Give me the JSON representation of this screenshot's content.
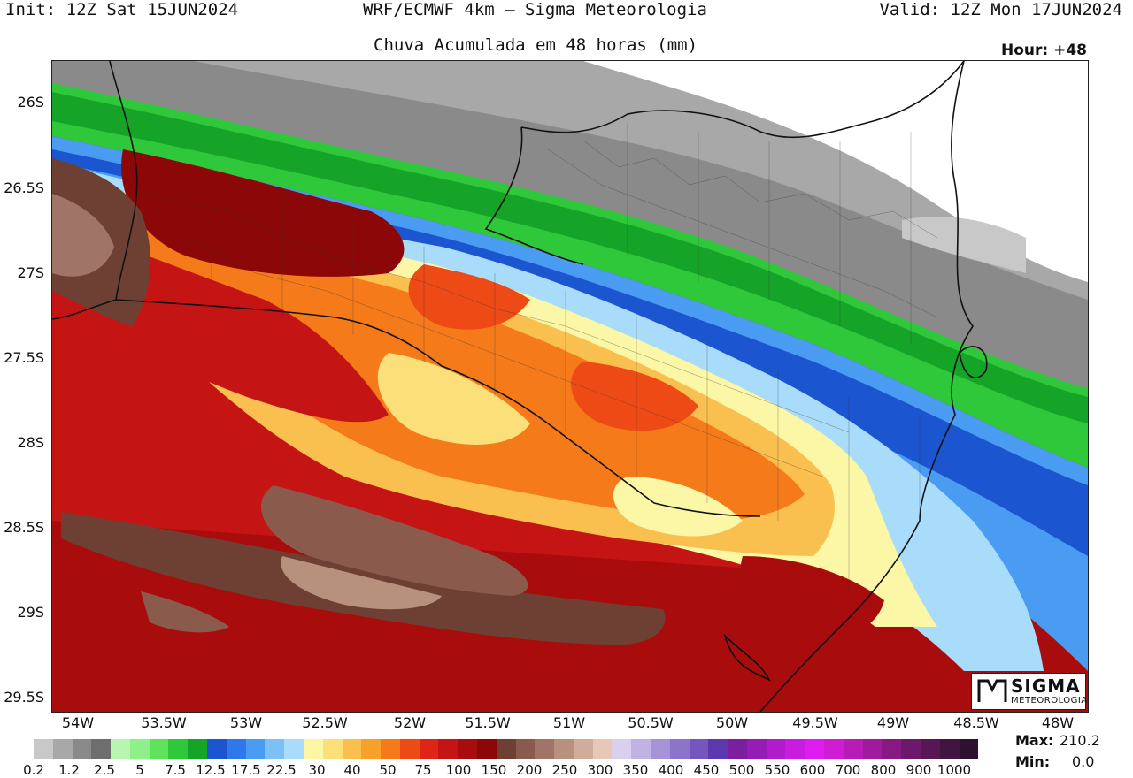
{
  "header": {
    "init": "Init: 12Z Sat 15JUN2024",
    "model": "WRF/ECMWF 4km – Sigma Meteorologia",
    "valid": "Valid: 12Z Mon 17JUN2024",
    "subtitle": "Chuva Acumulada em 48 horas (mm)",
    "hour": "Hour: +48"
  },
  "axes": {
    "y_labels": [
      "26S",
      "26.5S",
      "27S",
      "27.5S",
      "28S",
      "28.5S",
      "29S",
      "29.5S"
    ],
    "x_labels": [
      "54W",
      "53.5W",
      "53W",
      "52.5W",
      "52W",
      "51.5W",
      "51W",
      "50.5W",
      "50W",
      "49.5W",
      "49W",
      "48.5W",
      "48W"
    ]
  },
  "colorbar": {
    "labels": [
      "0.2",
      "1.2",
      "2.5",
      "5",
      "7.5",
      "12.5",
      "17.5",
      "22.5",
      "30",
      "40",
      "50",
      "75",
      "100",
      "150",
      "200",
      "250",
      "300",
      "350",
      "400",
      "450",
      "500",
      "550",
      "600",
      "700",
      "800",
      "900",
      "1000"
    ],
    "colors": [
      "#c8c8c8",
      "#a8a8a8",
      "#8a8a8a",
      "#6e6e6e",
      "#b8f5b0",
      "#8ff08a",
      "#5fe35a",
      "#2fc83a",
      "#16a428",
      "#1c55d0",
      "#2f78ea",
      "#4a9cf2",
      "#7cc0f6",
      "#a8dcfa",
      "#fbf7a6",
      "#fbe07a",
      "#f9c050",
      "#f7a02a",
      "#f47a1a",
      "#ee4a16",
      "#df2418",
      "#c41414",
      "#a80c0c",
      "#8c0808",
      "#6e4034",
      "#8a5a4c",
      "#a07466",
      "#b8907e",
      "#d0ac9a",
      "#e6c8b8",
      "#d8d0ec",
      "#c0b2e2",
      "#a692d6",
      "#8c74ca",
      "#7456bc",
      "#5c38ae",
      "#7c1ea0",
      "#961cb6",
      "#b01ccc",
      "#c81ce0",
      "#de1cf0",
      "#d01cd2",
      "#b81cb6",
      "#a01a9c",
      "#881882",
      "#6e186a",
      "#581654",
      "#421440",
      "#2e1030"
    ]
  },
  "stats": {
    "max_label": "Max:",
    "max_value": "210.2",
    "min_label": "Min:",
    "min_value": "0.0"
  },
  "logo": {
    "name": "SIGMA",
    "sub": "METEOROLOGIA"
  }
}
